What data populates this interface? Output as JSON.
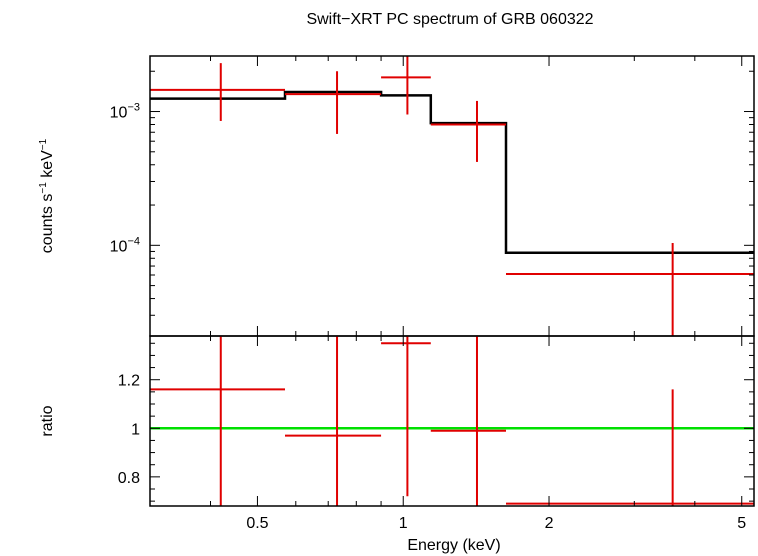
{
  "chart_data": {
    "title": "Swift−XRT PC spectrum of GRB 060322",
    "xlabel": "Energy (keV)",
    "x_scale": "log",
    "xlim": [
      0.3,
      5.3
    ],
    "x_ticks": [
      {
        "value": 0.5,
        "label": "0.5"
      },
      {
        "value": 1,
        "label": "1"
      },
      {
        "value": 2,
        "label": "2"
      },
      {
        "value": 5,
        "label": "5"
      }
    ],
    "colors": {
      "data": "#e00000",
      "model": "#000000",
      "unity": "#00e000"
    },
    "top_panel": {
      "type": "scatter",
      "ylabel": {
        "prefix": "counts s",
        "exp1": "−1",
        "mid": " keV",
        "exp2": "−1"
      },
      "y_scale": "log",
      "ylim": [
        2.1e-05,
        0.0026
      ],
      "y_ticks": [
        {
          "value": 0.001,
          "base": "10",
          "exp": "−3"
        },
        {
          "value": 0.0001,
          "base": "10",
          "exp": "−4"
        }
      ],
      "data": [
        {
          "xlo": 0.3,
          "xhi": 0.57,
          "x": 0.42,
          "y": 0.00145,
          "ylo": 0.00085,
          "yhi": 0.0023
        },
        {
          "xlo": 0.57,
          "xhi": 0.9,
          "x": 0.73,
          "y": 0.00135,
          "ylo": 0.00068,
          "yhi": 0.002
        },
        {
          "xlo": 0.9,
          "xhi": 1.14,
          "x": 1.02,
          "y": 0.0018,
          "ylo": 0.00095,
          "yhi": 0.0027
        },
        {
          "xlo": 1.14,
          "xhi": 1.63,
          "x": 1.42,
          "y": 0.0008,
          "ylo": 0.00042,
          "yhi": 0.0012
        },
        {
          "xlo": 1.63,
          "xhi": 5.3,
          "x": 3.6,
          "y": 6.1e-05,
          "ylo": 2.1e-05,
          "yhi": 0.000104
        }
      ],
      "model": [
        {
          "xlo": 0.3,
          "xhi": 0.57,
          "y": 0.00125
        },
        {
          "xlo": 0.57,
          "xhi": 0.9,
          "y": 0.0014
        },
        {
          "xlo": 0.9,
          "xhi": 1.14,
          "y": 0.00132
        },
        {
          "xlo": 1.14,
          "xhi": 1.63,
          "y": 0.00082
        },
        {
          "xlo": 1.63,
          "xhi": 5.3,
          "y": 8.8e-05
        }
      ]
    },
    "bottom_panel": {
      "type": "scatter",
      "ylabel": "ratio",
      "y_scale": "linear",
      "ylim": [
        0.68,
        1.38
      ],
      "y_ticks": [
        {
          "value": 0.8,
          "label": "0.8"
        },
        {
          "value": 1,
          "label": "1"
        },
        {
          "value": 1.2,
          "label": "1.2"
        }
      ],
      "reference_line": 1,
      "data": [
        {
          "xlo": 0.3,
          "xhi": 0.57,
          "x": 0.42,
          "y": 1.16,
          "ylo": 0.68,
          "yhi": 1.38
        },
        {
          "xlo": 0.57,
          "xhi": 0.9,
          "x": 0.73,
          "y": 0.97,
          "ylo": 0.68,
          "yhi": 1.38
        },
        {
          "xlo": 0.9,
          "xhi": 1.14,
          "x": 1.02,
          "y": 1.35,
          "ylo": 0.72,
          "yhi": 1.38
        },
        {
          "xlo": 1.14,
          "xhi": 1.63,
          "x": 1.42,
          "y": 0.99,
          "ylo": 0.68,
          "yhi": 1.38
        },
        {
          "xlo": 1.63,
          "xhi": 5.3,
          "x": 3.6,
          "y": 0.69,
          "ylo": 0.68,
          "yhi": 1.16
        }
      ]
    }
  }
}
